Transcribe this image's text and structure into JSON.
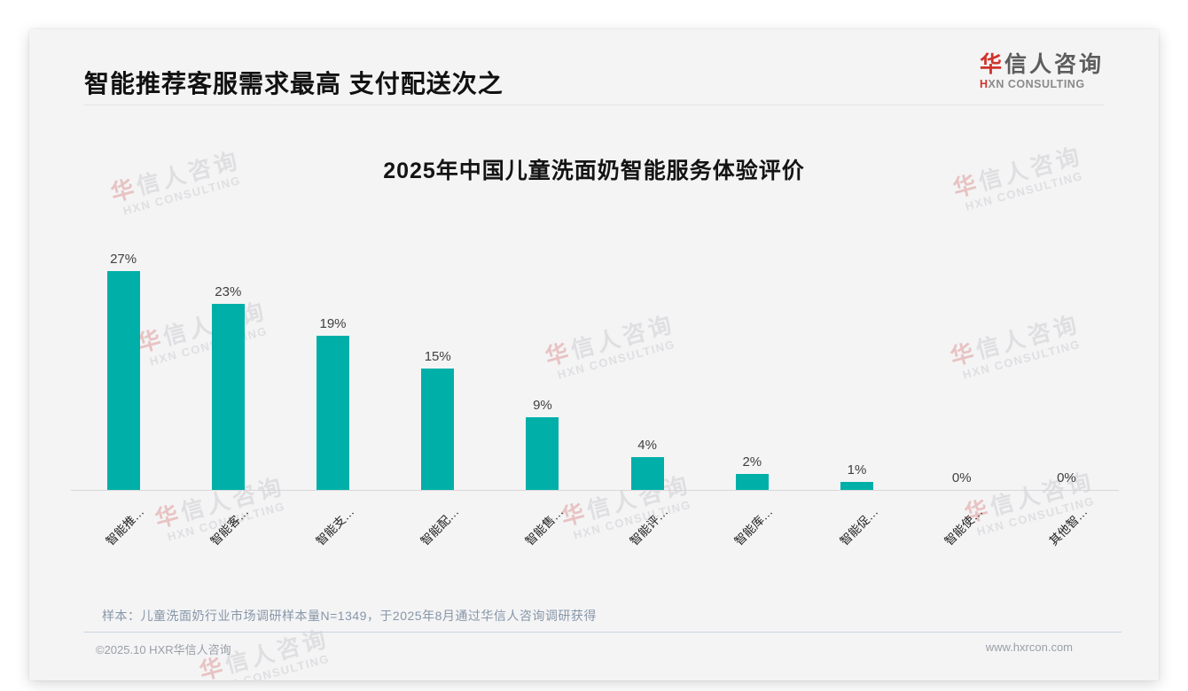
{
  "header": {
    "title": "智能推荐客服需求最高 支付配送次之"
  },
  "logo": {
    "brand_first_char": "华",
    "brand_rest": "信人咨询",
    "subtitle_first_char": "H",
    "subtitle_rest": "XN CONSULTING",
    "accent_color": "#cf342c"
  },
  "chart_data": {
    "type": "bar",
    "title": "2025年中国儿童洗面奶智能服务体验评价",
    "categories": [
      "智能推…",
      "智能客…",
      "智能支…",
      "智能配…",
      "智能售…",
      "智能评…",
      "智能库…",
      "智能促…",
      "智能使…",
      "其他智…"
    ],
    "values": [
      27,
      23,
      19,
      15,
      9,
      4,
      2,
      1,
      0,
      0
    ],
    "unit": "%",
    "ylim": [
      0,
      30
    ],
    "bar_color": "#00AFA8",
    "grid": false,
    "legend": false,
    "xlabel": "",
    "ylabel": "",
    "data_label_position": "above-bar",
    "category_label_rotation_deg": 45
  },
  "watermark": {
    "line1_first_char": "华",
    "line1_rest": "信人咨询",
    "line2": "HXN CONSULTING"
  },
  "footer": {
    "sample_note": "样本：儿童洗面奶行业市场调研样本量N=1349，于2025年8月通过华信人咨询调研获得",
    "copyright": "©2025.10 HXR华信人咨询",
    "website": "www.hxrcon.com"
  }
}
